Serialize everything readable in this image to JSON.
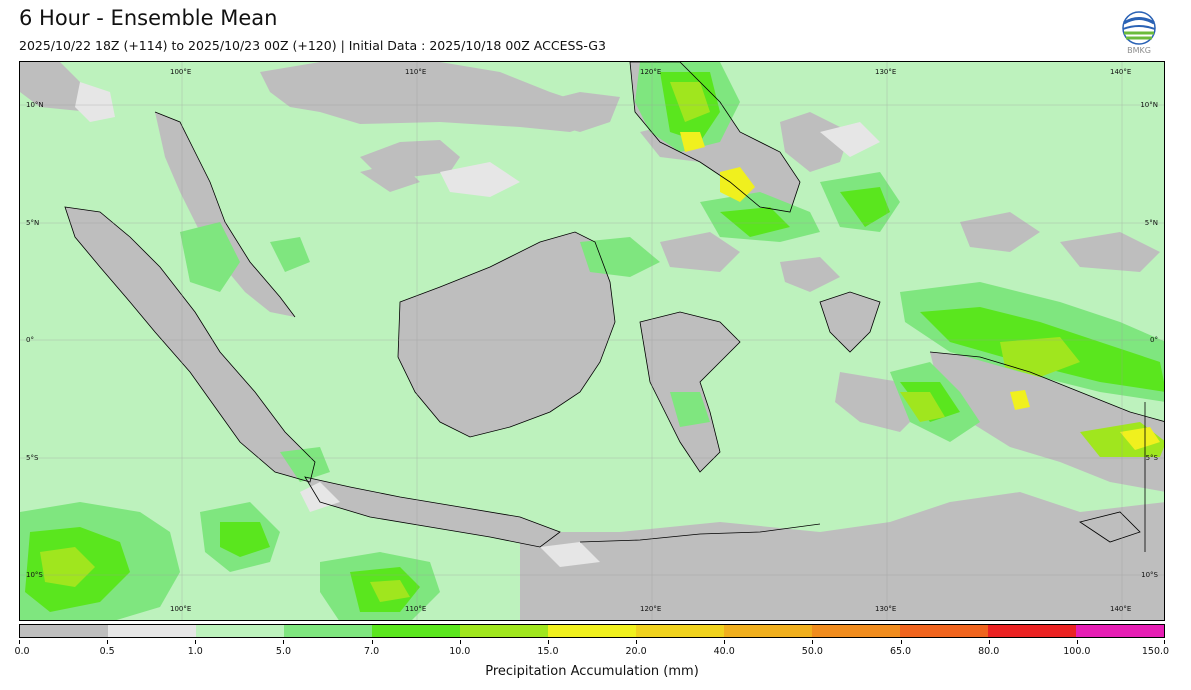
{
  "title": "6 Hour - Ensemble Mean",
  "subtitle": "2025/10/22 18Z (+114) to 2025/10/23 00Z (+120) | Initial Data : 2025/10/18 00Z ACCESS-G3",
  "logo_text": "BMKG",
  "map": {
    "lon_labels_top": [
      "100°E",
      "110°E",
      "120°E",
      "130°E",
      "140°E"
    ],
    "lon_labels_bottom": [
      "100°E",
      "110°E",
      "120°E",
      "130°E",
      "140°E"
    ],
    "lat_labels_left": [
      "10°N",
      "5°N",
      "0°",
      "5°S",
      "10°S"
    ],
    "lat_labels_right": [
      "10°N",
      "5°N",
      "0°",
      "5°S",
      "10°S"
    ]
  },
  "colorbar": {
    "label": "Precipitation Accumulation (mm)",
    "ticks": [
      "0.0",
      "0.5",
      "1.0",
      "5.0",
      "7.0",
      "10.0",
      "15.0",
      "20.0",
      "40.0",
      "50.0",
      "65.0",
      "80.0",
      "100.0",
      "150.0"
    ],
    "colors": [
      "#bebebe",
      "#e6e6e6",
      "#bdf2bd",
      "#7fe67f",
      "#5ae61e",
      "#a0e61e",
      "#f0f01e",
      "#f0d21e",
      "#f0af1e",
      "#f08c1e",
      "#f0641e",
      "#eb2323",
      "#e61eb4"
    ]
  }
}
